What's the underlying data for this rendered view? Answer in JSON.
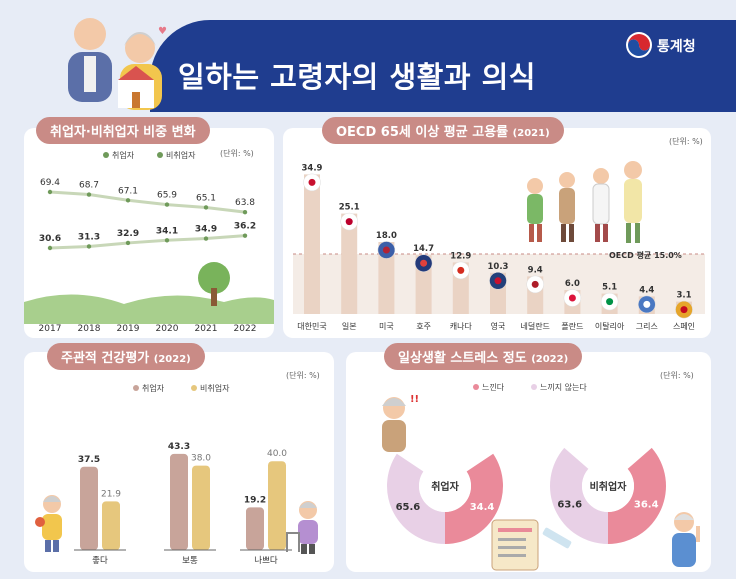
{
  "header": {
    "title": "일하는 고령자의 생활과 의식",
    "agency": "통계청"
  },
  "panels": {
    "p1": {
      "title": "취업자·비취업자 비중 변화",
      "unit": "(단위: %)"
    },
    "p2": {
      "title": "OECD 65세 이상 평균 고용률",
      "title_suffix": "(2021)",
      "unit": "(단위: %)",
      "avg_label": "OECD 평균 15.0%"
    },
    "p3": {
      "title": "주관적 건강평가",
      "title_suffix": "(2022)",
      "unit": "(단위: %)"
    },
    "p4": {
      "title": "일상생활 스트레스 정도",
      "title_suffix": "(2022)",
      "unit": "(단위: %)"
    }
  },
  "colors": {
    "navy": "#1f3d8f",
    "title_pill": "#c98b86",
    "series_a": "#c8a49a",
    "series_b": "#e6c77d",
    "green": "#6f9a5a",
    "pink": "#ea8a9a",
    "lavender": "#e8d0e6",
    "bar_p2": "#ead3c4"
  },
  "chart_data": [
    {
      "type": "line",
      "title": "취업자·비취업자 비중 변화",
      "x": [
        "2017",
        "2018",
        "2019",
        "2020",
        "2021",
        "2022"
      ],
      "series": [
        {
          "name": "비취업자",
          "values": [
            69.4,
            68.7,
            67.1,
            65.9,
            65.1,
            63.8
          ]
        },
        {
          "name": "취업자",
          "values": [
            30.6,
            31.3,
            32.9,
            34.1,
            34.9,
            36.2
          ]
        }
      ],
      "legend": "top-center"
    },
    {
      "type": "bar",
      "title": "OECD 65세 이상 평균 고용률 (2021)",
      "categories": [
        "대한민국",
        "일본",
        "미국",
        "호주",
        "캐나다",
        "영국",
        "네덜란드",
        "폴란드",
        "이탈리아",
        "그리스",
        "스페인"
      ],
      "values": [
        34.9,
        25.1,
        18.0,
        14.7,
        12.9,
        10.3,
        9.4,
        6.0,
        5.1,
        4.4,
        3.1
      ],
      "reference_line": {
        "label": "OECD 평균 15.0%",
        "value": 15.0
      }
    },
    {
      "type": "bar",
      "title": "주관적 건강평가 (2022)",
      "categories": [
        "좋다",
        "보통",
        "나쁘다"
      ],
      "series": [
        {
          "name": "취업자",
          "values": [
            37.5,
            43.3,
            19.2
          ]
        },
        {
          "name": "비취업자",
          "values": [
            21.9,
            38.0,
            40.0
          ]
        }
      ],
      "legend": "top-center"
    },
    {
      "type": "pie",
      "title": "일상생활 스트레스 정도 (2022)",
      "legend": [
        "느낀다",
        "느끼지 않는다"
      ],
      "charts": [
        {
          "name": "취업자",
          "values": [
            34.4,
            65.6
          ]
        },
        {
          "name": "비취업자",
          "values": [
            36.4,
            63.6
          ]
        }
      ]
    }
  ]
}
